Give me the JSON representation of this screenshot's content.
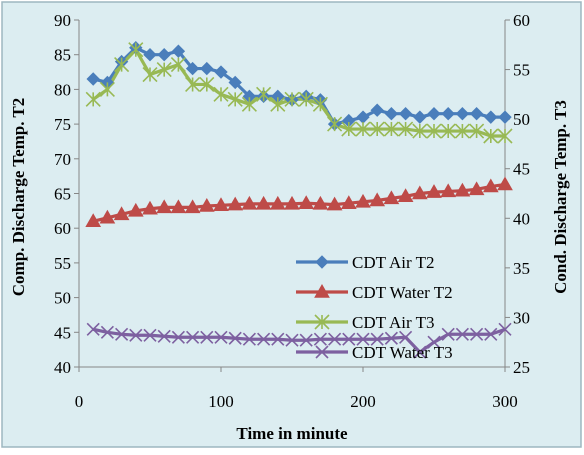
{
  "chart_data": {
    "type": "line",
    "xlabel": "Time in minute",
    "ylabel_left": "Comp. Discharge Temp. T2",
    "ylabel_right": "Cond. Discharge Temp. T3",
    "x_range": [
      0,
      300
    ],
    "x_ticks": [
      0,
      100,
      200,
      300
    ],
    "y_left_range": [
      40,
      90
    ],
    "y_left_ticks": [
      40,
      45,
      50,
      55,
      60,
      65,
      70,
      75,
      80,
      85,
      90
    ],
    "y_right_range": [
      25,
      60
    ],
    "y_right_ticks": [
      25,
      30,
      35,
      40,
      45,
      50,
      55,
      60
    ],
    "grid": false,
    "legend_position": "center-right",
    "colors": {
      "plot_background": "#dcedf1",
      "frame_fill": "#dcedf1",
      "frame_border": "#9db7c0"
    },
    "series": [
      {
        "name": "CDT Air T2",
        "axis": "left",
        "color": "#4a7ebb",
        "marker": "diamond",
        "x": [
          10,
          20,
          30,
          40,
          50,
          60,
          70,
          80,
          90,
          100,
          110,
          120,
          130,
          140,
          150,
          160,
          170,
          180,
          190,
          200,
          210,
          220,
          230,
          240,
          250,
          260,
          270,
          280,
          290,
          300
        ],
        "y": [
          81.5,
          81.0,
          84.0,
          86.0,
          85.0,
          85.0,
          85.5,
          83.0,
          83.0,
          82.5,
          81.0,
          79.0,
          79.0,
          79.0,
          78.5,
          79.0,
          78.5,
          75.0,
          75.5,
          76.0,
          77.0,
          76.5,
          76.5,
          76.0,
          76.5,
          76.5,
          76.5,
          76.5,
          76.0,
          76.0
        ]
      },
      {
        "name": "CDT Water T2",
        "axis": "left",
        "color": "#be4b48",
        "marker": "triangle",
        "x": [
          10,
          20,
          30,
          40,
          50,
          60,
          70,
          80,
          90,
          100,
          110,
          120,
          130,
          140,
          150,
          160,
          170,
          180,
          190,
          200,
          210,
          220,
          230,
          240,
          250,
          260,
          270,
          280,
          290,
          300
        ],
        "y": [
          61.0,
          61.5,
          62.0,
          62.5,
          62.8,
          63.0,
          63.0,
          63.0,
          63.2,
          63.3,
          63.4,
          63.5,
          63.5,
          63.5,
          63.5,
          63.6,
          63.5,
          63.4,
          63.6,
          63.8,
          64.0,
          64.3,
          64.6,
          65.0,
          65.2,
          65.3,
          65.4,
          65.6,
          66.0,
          66.3
        ]
      },
      {
        "name": "CDT Air T3",
        "axis": "right",
        "color": "#98b954",
        "marker": "asterisk",
        "x": [
          10,
          20,
          30,
          40,
          50,
          60,
          70,
          80,
          90,
          100,
          110,
          120,
          130,
          140,
          150,
          160,
          170,
          180,
          190,
          200,
          210,
          220,
          230,
          240,
          250,
          260,
          270,
          280,
          290,
          300
        ],
        "y": [
          52.0,
          53.0,
          55.5,
          57.0,
          54.5,
          55.0,
          55.5,
          53.5,
          53.5,
          52.5,
          52.0,
          51.5,
          52.5,
          51.5,
          52.0,
          52.0,
          51.5,
          49.5,
          49.0,
          49.0,
          49.0,
          49.0,
          49.0,
          48.8,
          48.8,
          48.8,
          48.8,
          48.8,
          48.3,
          48.3
        ]
      },
      {
        "name": "CDT Water T3",
        "axis": "right",
        "color": "#7d60a0",
        "marker": "x",
        "x": [
          10,
          20,
          30,
          40,
          50,
          60,
          70,
          80,
          90,
          100,
          110,
          120,
          130,
          140,
          150,
          160,
          170,
          180,
          190,
          200,
          210,
          220,
          230,
          240,
          250,
          260,
          270,
          280,
          290,
          300
        ],
        "y": [
          28.8,
          28.5,
          28.3,
          28.2,
          28.2,
          28.1,
          28.0,
          28.0,
          28.0,
          28.0,
          27.9,
          27.8,
          27.8,
          27.8,
          27.7,
          27.7,
          27.8,
          27.8,
          27.8,
          27.8,
          27.8,
          27.9,
          28.0,
          26.5,
          27.5,
          28.3,
          28.3,
          28.3,
          28.3,
          28.8
        ]
      }
    ]
  }
}
